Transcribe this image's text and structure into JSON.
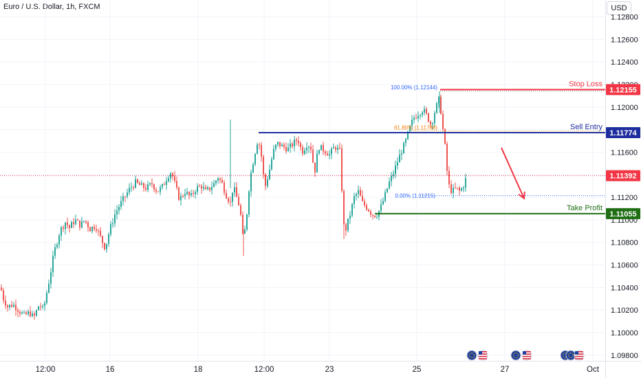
{
  "header": {
    "title": "Euro / U.S. Dollar, 1h, FXCM",
    "currency": "USD"
  },
  "chart_data": {
    "type": "candlestick",
    "price_axis": {
      "ticks": [
        "1.12800",
        "1.12600",
        "1.12400",
        "1.12200",
        "1.12000",
        "1.11800",
        "1.11600",
        "1.11400",
        "1.11200",
        "1.11000",
        "1.10800",
        "1.10600",
        "1.10400",
        "1.10200",
        "1.10000",
        "1.09800"
      ],
      "tick_values": [
        1.128,
        1.126,
        1.124,
        1.122,
        1.12,
        1.118,
        1.116,
        1.114,
        1.112,
        1.11,
        1.108,
        1.106,
        1.104,
        1.102,
        1.1,
        1.098
      ],
      "range": [
        1.0975,
        1.1295
      ]
    },
    "time_axis": {
      "labels": [
        "12:00",
        "16",
        "18",
        "12:00",
        "23",
        "25",
        "27",
        "Oct"
      ]
    },
    "path_points": [
      [
        0,
        1.104
      ],
      [
        4,
        1.103
      ],
      [
        10,
        1.1023
      ],
      [
        18,
        1.1025
      ],
      [
        26,
        1.102
      ],
      [
        34,
        1.1015
      ],
      [
        42,
        1.1018
      ],
      [
        48,
        1.1013
      ],
      [
        56,
        1.1025
      ],
      [
        62,
        1.102
      ],
      [
        70,
        1.1045
      ],
      [
        78,
        1.1072
      ],
      [
        86,
        1.109
      ],
      [
        94,
        1.1098
      ],
      [
        100,
        1.1093
      ],
      [
        108,
        1.11
      ],
      [
        116,
        1.1095
      ],
      [
        122,
        1.11
      ],
      [
        130,
        1.1092
      ],
      [
        138,
        1.1095
      ],
      [
        146,
        1.1083
      ],
      [
        152,
        1.1075
      ],
      [
        158,
        1.109
      ],
      [
        166,
        1.1105
      ],
      [
        172,
        1.1112
      ],
      [
        180,
        1.112
      ],
      [
        188,
        1.1128
      ],
      [
        196,
        1.1133
      ],
      [
        204,
        1.113
      ],
      [
        212,
        1.1128
      ],
      [
        220,
        1.1132
      ],
      [
        228,
        1.1125
      ],
      [
        236,
        1.113
      ],
      [
        242,
        1.1138
      ],
      [
        248,
        1.1143
      ],
      [
        254,
        1.113
      ],
      [
        260,
        1.1118
      ],
      [
        268,
        1.1125
      ],
      [
        276,
        1.112
      ],
      [
        284,
        1.1128
      ],
      [
        292,
        1.113
      ],
      [
        298,
        1.1125
      ],
      [
        304,
        1.1128
      ],
      [
        310,
        1.1132
      ],
      [
        316,
        1.1138
      ],
      [
        322,
        1.1132
      ],
      [
        328,
        1.1122
      ],
      [
        334,
        1.1115
      ],
      [
        338,
        1.113
      ],
      [
        344,
        1.1118
      ],
      [
        348,
        1.111
      ],
      [
        352,
        1.1085
      ],
      [
        356,
        1.1092
      ],
      [
        362,
        1.1135
      ],
      [
        368,
        1.1155
      ],
      [
        374,
        1.1172
      ],
      [
        378,
        1.1162
      ],
      [
        384,
        1.1128
      ],
      [
        390,
        1.1142
      ],
      [
        396,
        1.116
      ],
      [
        402,
        1.1168
      ],
      [
        410,
        1.1165
      ],
      [
        418,
        1.1163
      ],
      [
        426,
        1.1168
      ],
      [
        432,
        1.1172
      ],
      [
        438,
        1.116
      ],
      [
        446,
        1.1168
      ],
      [
        452,
        1.1163
      ],
      [
        456,
        1.114
      ],
      [
        462,
        1.1165
      ],
      [
        470,
        1.1162
      ],
      [
        478,
        1.1158
      ],
      [
        486,
        1.1165
      ],
      [
        494,
        1.116
      ],
      [
        498,
        1.1095
      ],
      [
        502,
        1.1092
      ],
      [
        508,
        1.1105
      ],
      [
        514,
        1.112
      ],
      [
        520,
        1.1125
      ],
      [
        526,
        1.1115
      ],
      [
        534,
        1.111
      ],
      [
        540,
        1.1105
      ],
      [
        546,
        1.1104
      ],
      [
        552,
        1.111
      ],
      [
        558,
        1.112
      ],
      [
        564,
        1.1132
      ],
      [
        570,
        1.114
      ],
      [
        576,
        1.115
      ],
      [
        582,
        1.116
      ],
      [
        588,
        1.1168
      ],
      [
        594,
        1.118
      ],
      [
        600,
        1.119
      ],
      [
        608,
        1.1195
      ],
      [
        614,
        1.1198
      ],
      [
        620,
        1.1192
      ],
      [
        626,
        1.1184
      ],
      [
        632,
        1.1198
      ],
      [
        638,
        1.1208
      ],
      [
        642,
        1.1185
      ],
      [
        646,
        1.1165
      ],
      [
        648,
        1.1148
      ],
      [
        652,
        1.113
      ],
      [
        656,
        1.1125
      ],
      [
        662,
        1.1128
      ],
      [
        668,
        1.1125
      ],
      [
        674,
        1.1132
      ],
      [
        676,
        1.1136
      ]
    ],
    "levels": [
      {
        "name": "Stop Loss",
        "price_label": "1.12155",
        "value": 1.12155,
        "color": "#f23645",
        "x_start": 640
      },
      {
        "name": "Sell Entry",
        "price_label": "1.11774",
        "value": 1.11774,
        "color": "#1e2e9e",
        "x_start": 376
      },
      {
        "name": "Take Profit",
        "price_label": "1.11055",
        "value": 1.11055,
        "color": "#1f6e14",
        "x_start": 545
      }
    ],
    "current_price": {
      "label": "1.11392",
      "value": 1.11392,
      "color": "#f23645"
    },
    "fib": {
      "top": {
        "label": "100.00% (1.12144)",
        "value": 1.12144
      },
      "mid": {
        "label": "61.80% (1.11788)",
        "value": 1.11788
      },
      "bottom": {
        "label": "0.00% (1.11215)",
        "value": 1.11215
      }
    },
    "arrow": {
      "from": [
        729,
        1.1164
      ],
      "to": [
        762,
        1.1119
      ],
      "color": "#f23645"
    },
    "colors": {
      "up": "#26a69a",
      "down": "#ef5350",
      "grid": "#f0f3fa"
    }
  },
  "event_icons": [
    {
      "name": "eu-us-flags-1"
    },
    {
      "name": "eu-us-flags-2"
    },
    {
      "name": "eu-eu-us-flags-3"
    }
  ]
}
